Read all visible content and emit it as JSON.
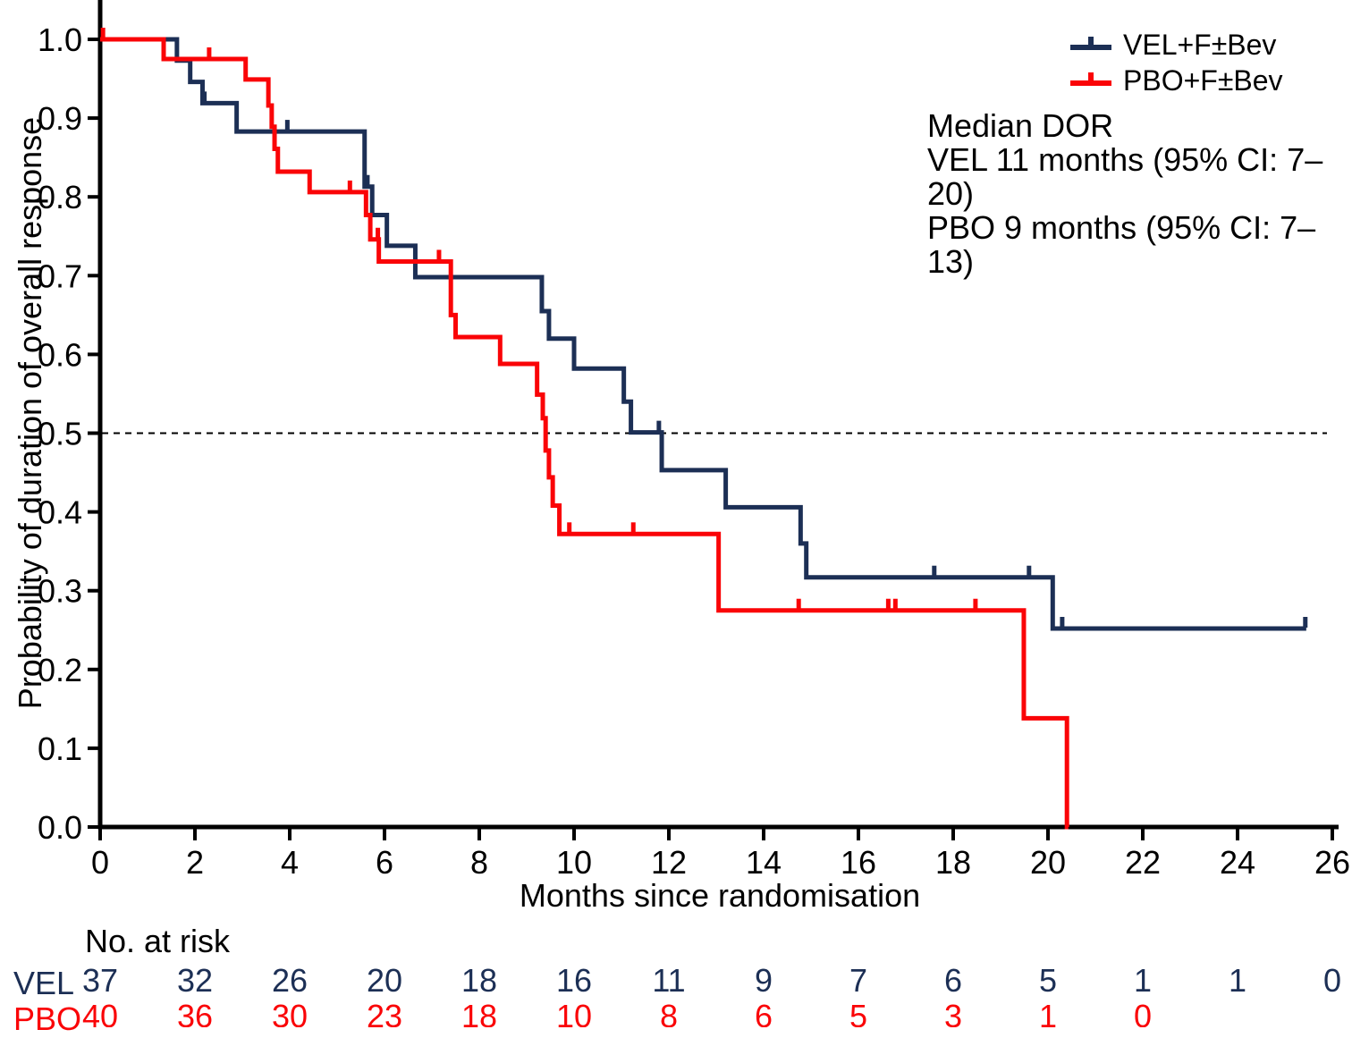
{
  "chart_data": {
    "type": "line",
    "subtype": "kaplan-meier-step",
    "title": "",
    "xlabel": "Months since randomisation",
    "ylabel": "Probability of duration of overall response",
    "xlim": [
      0,
      26
    ],
    "ylim": [
      0.0,
      1.0
    ],
    "xticks": [
      0,
      2,
      4,
      6,
      8,
      10,
      12,
      14,
      16,
      18,
      20,
      22,
      24,
      26
    ],
    "yticks": [
      0.0,
      0.1,
      0.2,
      0.3,
      0.4,
      0.5,
      0.6,
      0.7,
      0.8,
      0.9,
      1.0
    ],
    "grid": false,
    "reference_line": {
      "y": 0.5,
      "style": "dashed",
      "color": "#000000"
    },
    "legend": {
      "position": "top-right",
      "entries": [
        {
          "label": "VEL+F±Bev",
          "color": "#1c2f55"
        },
        {
          "label": "PBO+F±Bev",
          "color": "#fa0407"
        }
      ]
    },
    "annotation": {
      "lines": [
        "Median DOR",
        "VEL 11 months (95% CI: 7–20)",
        "PBO 9 months (95% CI: 7–13)"
      ]
    },
    "series": [
      {
        "name": "VEL+F±Bev",
        "color": "#1c2f55",
        "steps": [
          [
            0,
            1.0
          ],
          [
            1.62,
            0.973
          ],
          [
            1.9,
            0.946
          ],
          [
            2.16,
            0.919
          ],
          [
            2.88,
            0.883
          ],
          [
            5.58,
            0.813
          ],
          [
            5.74,
            0.777
          ],
          [
            6.05,
            0.738
          ],
          [
            6.65,
            0.698
          ],
          [
            9.32,
            0.655
          ],
          [
            9.47,
            0.62
          ],
          [
            10.0,
            0.582
          ],
          [
            11.05,
            0.54
          ],
          [
            11.2,
            0.501
          ],
          [
            11.85,
            0.453
          ],
          [
            13.2,
            0.406
          ],
          [
            14.78,
            0.36
          ],
          [
            14.9,
            0.317
          ],
          [
            20.1,
            0.252
          ],
          [
            25.45,
            0.252
          ]
        ],
        "censors": [
          [
            2.2,
            0.919
          ],
          [
            3.95,
            0.883
          ],
          [
            5.64,
            0.813
          ],
          [
            11.79,
            0.501
          ],
          [
            17.6,
            0.317
          ],
          [
            19.6,
            0.317
          ],
          [
            20.3,
            0.252
          ],
          [
            25.43,
            0.252
          ]
        ]
      },
      {
        "name": "PBO+F±Bev",
        "color": "#fa0407",
        "steps": [
          [
            0,
            1.0
          ],
          [
            1.34,
            0.975
          ],
          [
            3.07,
            0.949
          ],
          [
            3.55,
            0.916
          ],
          [
            3.62,
            0.889
          ],
          [
            3.68,
            0.861
          ],
          [
            3.75,
            0.832
          ],
          [
            4.42,
            0.806
          ],
          [
            5.61,
            0.777
          ],
          [
            5.7,
            0.746
          ],
          [
            5.88,
            0.718
          ],
          [
            7.4,
            0.65
          ],
          [
            7.5,
            0.622
          ],
          [
            8.44,
            0.588
          ],
          [
            9.22,
            0.549
          ],
          [
            9.34,
            0.519
          ],
          [
            9.4,
            0.478
          ],
          [
            9.47,
            0.444
          ],
          [
            9.55,
            0.408
          ],
          [
            9.69,
            0.372
          ],
          [
            13.05,
            0.275
          ],
          [
            19.49,
            0.138
          ],
          [
            20.4,
            0.0
          ],
          [
            20.43,
            0.0
          ]
        ],
        "censors": [
          [
            0.06,
            1.0
          ],
          [
            2.3,
            0.975
          ],
          [
            5.27,
            0.806
          ],
          [
            5.86,
            0.746
          ],
          [
            7.15,
            0.718
          ],
          [
            9.9,
            0.372
          ],
          [
            11.25,
            0.372
          ],
          [
            14.74,
            0.275
          ],
          [
            16.63,
            0.275
          ],
          [
            16.78,
            0.275
          ],
          [
            18.47,
            0.275
          ]
        ]
      }
    ],
    "risk_table": {
      "title": "No. at risk",
      "rows": [
        {
          "label": "VEL",
          "color": "#1c2f55",
          "months": [
            0,
            2,
            4,
            6,
            8,
            10,
            12,
            14,
            16,
            18,
            20,
            22,
            24,
            26
          ],
          "values": [
            37,
            32,
            26,
            20,
            18,
            16,
            11,
            9,
            7,
            6,
            5,
            1,
            1,
            0
          ]
        },
        {
          "label": "PBO",
          "color": "#fa0407",
          "months": [
            0,
            2,
            4,
            6,
            8,
            10,
            12,
            14,
            16,
            18,
            20,
            22
          ],
          "values": [
            40,
            36,
            30,
            23,
            18,
            10,
            8,
            6,
            5,
            3,
            1,
            0
          ]
        }
      ]
    }
  }
}
